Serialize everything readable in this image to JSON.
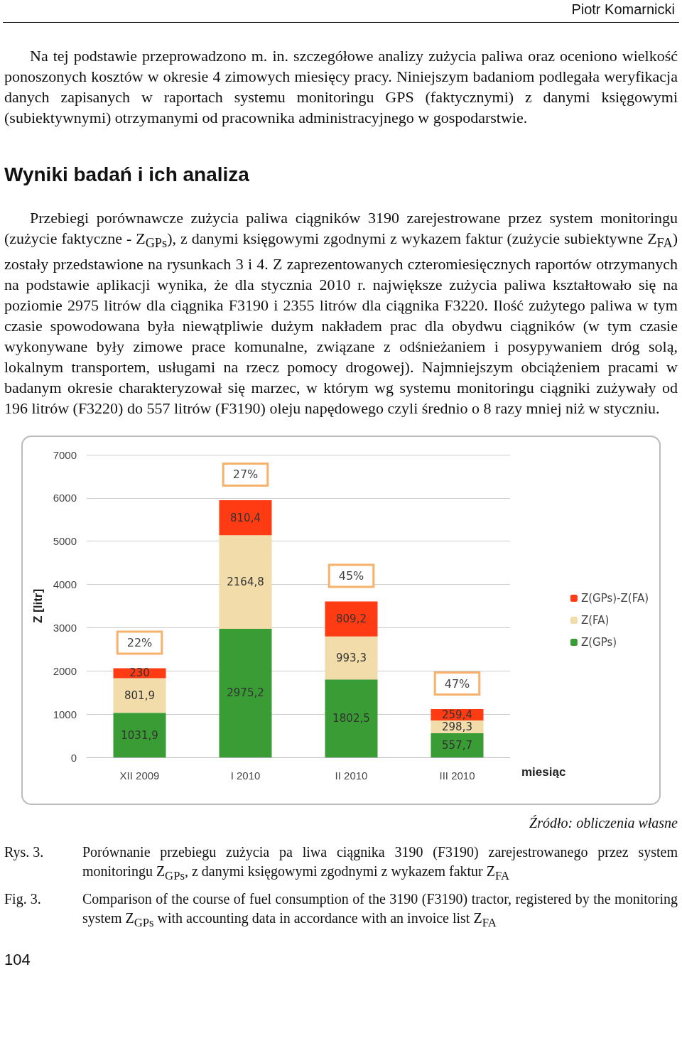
{
  "chart_data": {
    "type": "bar",
    "stacked": true,
    "categories": [
      "XII 2009",
      "I 2010",
      "II 2010",
      "III 2010"
    ],
    "xlabel": "miesiąc",
    "ylabel": "Z [litr]",
    "ylim": [
      0,
      7000
    ],
    "yticks": [
      0,
      1000,
      2000,
      3000,
      4000,
      5000,
      6000,
      7000
    ],
    "grid": "y",
    "legend": "right",
    "series": [
      {
        "name": "Z(GPs)",
        "color": "#3a9c34",
        "values": [
          1031.9,
          2975.2,
          1802.5,
          557.7
        ],
        "value_labels": [
          "1031,9",
          "2975,2",
          "1802,5",
          "557,7"
        ]
      },
      {
        "name": "Z(FA)",
        "color": "#f2dcaa",
        "values": [
          801.9,
          2164.8,
          993.3,
          298.3
        ],
        "value_labels": [
          "801,9",
          "2164,8",
          "993,3",
          "298,3"
        ]
      },
      {
        "name": "Z(GPs)-Z(FA)",
        "color": "#fe3b12",
        "values": [
          230,
          810.4,
          809.2,
          259.4
        ],
        "value_labels": [
          "230",
          "810,4",
          "809,2",
          "259,4"
        ]
      }
    ],
    "annotations": [
      "Piotr Komarnicki",
      "Na tej podstawie przeprowadzono m. in. szczegółowe analizy zużycia paliwa oraz oceniono wielkość ponoszonych kosztów w okresie 4 zimowych miesięcy pracy. Niniejszym badaniom podlegała weryfikacja danych zapisanych w raportach systemu monitoringu GPS (faktycznymi) z danymi księgowymi (subiektywnymi) otrzymanymi od pracownika administracyjnego w gospodarstwie.",
      "Wyniki badań i ich analiza",
      "Przebiegi porównawcze zużycia paliwa ciągników 3190 zarejestrowane przez system monitoringu (zużycie faktyczne - Z$_{GPs}$), z danymi księgowymi zgodnymi z wykazem faktur (zużycie subiektywne Z$_{FA}$) zostały przedstawione na rysunkach 3 i 4. Z zaprezentowanych czteromiesięcznych raportów otrzymanych na podstawie aplikacji wynika, że dla stycznia 2010 r. największe zużycia paliwa kształtowało się na poziomie 2975 litrów dla ciągnika F3190 i 2355 litrów dla ciągnika F3220. Ilość zużytego paliwa w tym czasie spowodowana była niewątpliwie dużym nakładem prac dla obydwu ciągników (w tym czasie wykonywane były zimowe prace komunalne, związane z odśnieżaniem i posypywaniem dróg solą, lokalnym transportem, usługami na rzecz pomocy drogowej). Najmniejszym obciążeniem pracami w badanym okresie charakteryzował się marzec, w którym wg systemu monitoringu ciągniki zużywały od 196 litrów (F3220) do 557 litrów (F3190) oleju napędowego czyli średnio o 8 razy mniej niż w styczniu.",
      "22%",
      "27%",
      "45%",
      "47%",
      "Źródło: obliczenia własne",
      "Rys. 3.",
      "Porównanie przebiegu zużycia pa liwa ciągnika 3190 (F3190) zarejestrowanego przez system monitoringu Z$_{GPs}$, z danymi księgowymi zgodnymi z wykazem faktur Z$_{FA}$",
      "Fig. 3.",
      "Comparison of the course of fuel consumption of the 3190 (F3190) tractor, registered by the monitoring system Z$_{GPs}$ with accounting data in accordance with an invoice list Z$_{FA}$",
      "104"
    ]
  }
}
